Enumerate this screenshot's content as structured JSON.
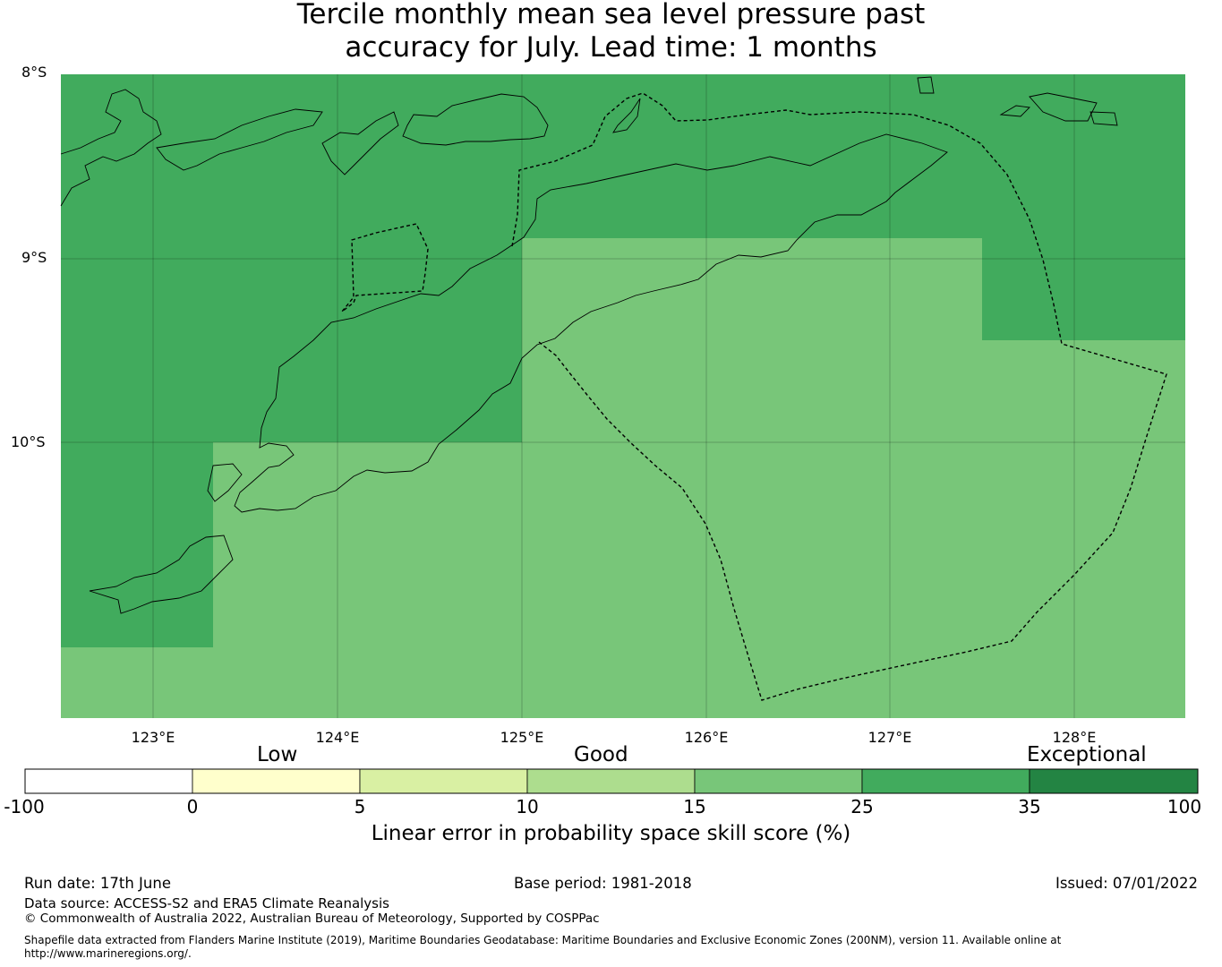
{
  "title": {
    "line1": "Tercile monthly mean sea level pressure past",
    "line2": "accuracy for July. Lead time: 1 months"
  },
  "map": {
    "lat_labels": [
      "8°S",
      "9°S",
      "10°S"
    ],
    "lon_labels": [
      "123°E",
      "124°E",
      "125°E",
      "126°E",
      "127°E",
      "128°E"
    ],
    "colors": {
      "very_good": "#41ab5d",
      "good": "#78c679",
      "coastline": "#000000",
      "eez_boundary": "#000000"
    }
  },
  "colorbar": {
    "categories": [
      "Low",
      "Good",
      "Exceptional"
    ],
    "ticks": [
      "-100",
      "0",
      "5",
      "10",
      "15",
      "25",
      "35",
      "100"
    ],
    "colors": [
      "#ffffff",
      "#ffffcc",
      "#d9f0a3",
      "#addd8e",
      "#78c679",
      "#41ab5d",
      "#238443"
    ],
    "label": "Linear error in probability space skill score (%)"
  },
  "footer": {
    "run_date": "Run date: 17th June",
    "base_period": "Base period: 1981-2018",
    "issued": "Issued: 07/01/2022",
    "data_source": "Data source: ACCESS-S2 and ERA5 Climate Reanalysis",
    "copyright": "© Commonwealth of Australia 2022, Australian Bureau of Meteorology, Supported by COSPPac",
    "shapefile_line1": "Shapefile data extracted from Flanders Marine Institute (2019), Maritime Boundaries Geodatabase: Maritime Boundaries and Exclusive Economic Zones (200NM), version 11. Available online at",
    "shapefile_line2": "http://www.marineregions.org/."
  }
}
